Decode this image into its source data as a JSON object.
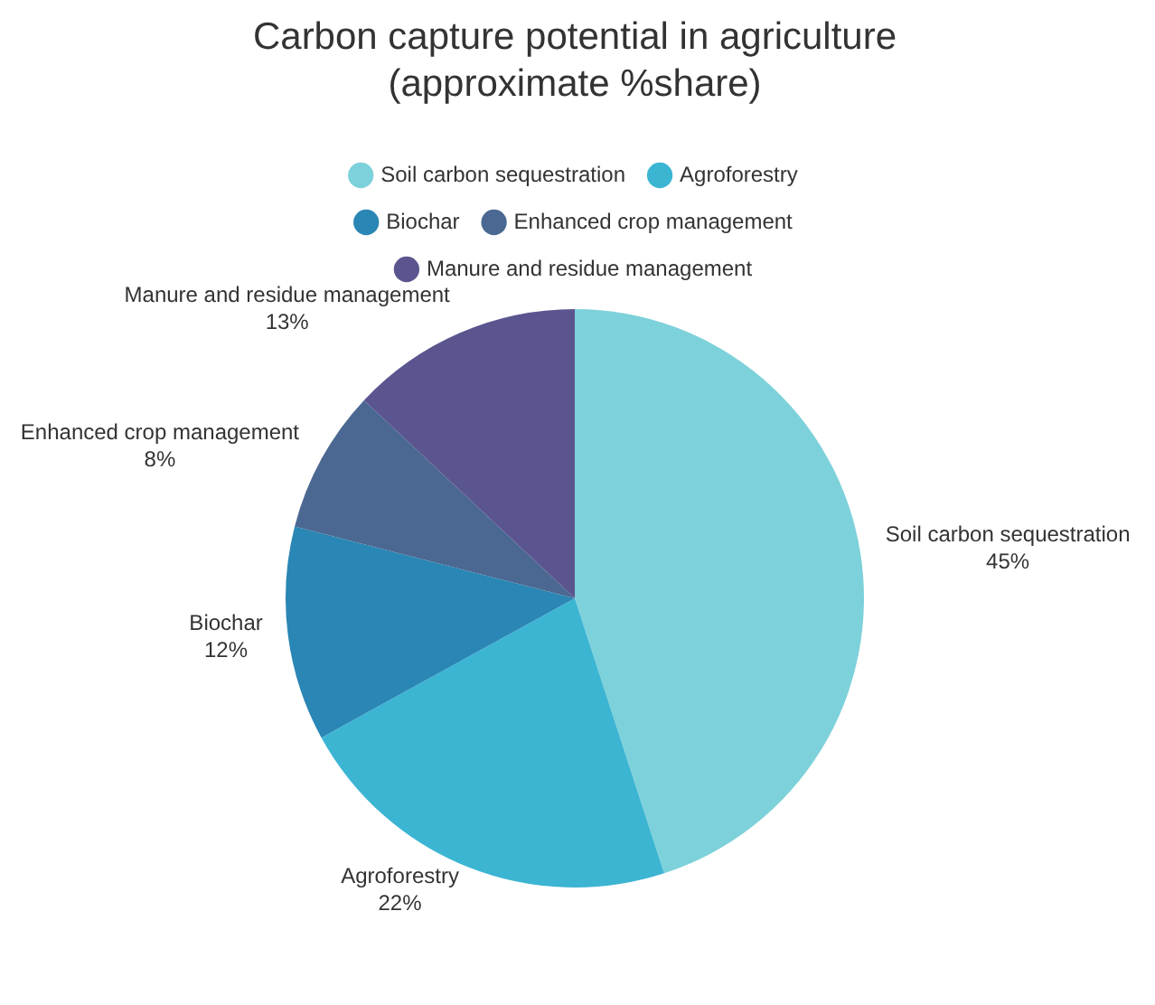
{
  "chart_data": {
    "type": "pie",
    "title": "Carbon capture potential in agriculture (approximate %share)",
    "categories": [
      "Soil carbon sequestration",
      "Agroforestry",
      "Biochar",
      "Enhanced crop management",
      "Manure and residue management"
    ],
    "values": [
      45,
      22,
      12,
      8,
      13
    ],
    "value_labels": [
      "45%",
      "22%",
      "12%",
      "8%",
      "13%"
    ],
    "colors": [
      "#7dd1da",
      "#3cb5d3",
      "#2a86b4",
      "#4a6891",
      "#5b558f"
    ],
    "legend": "top"
  }
}
